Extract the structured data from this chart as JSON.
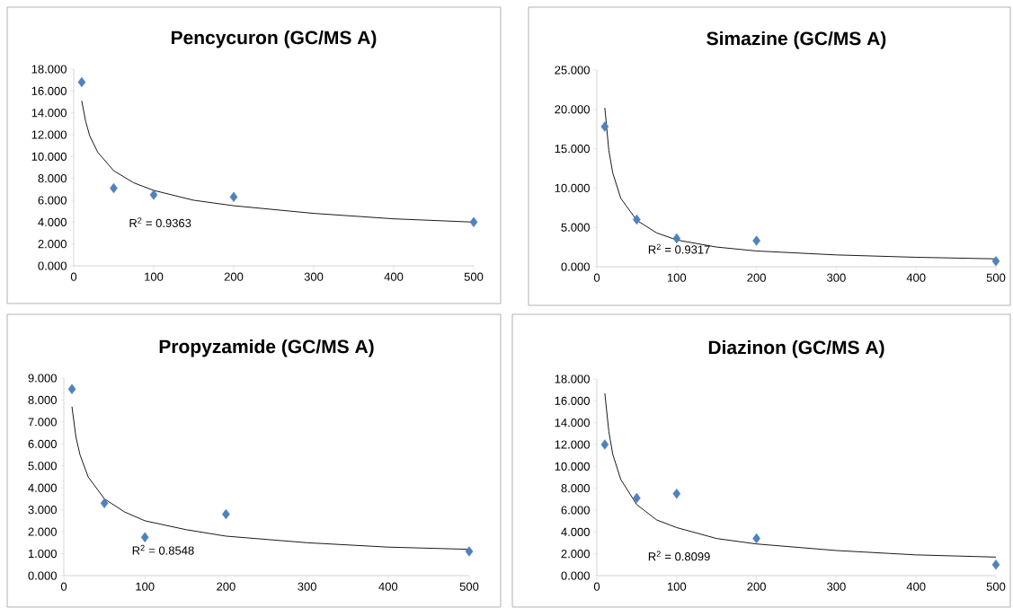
{
  "chart_data": [
    {
      "type": "scatter",
      "title": "Pencycuron (GC/MS A)",
      "xlim": [
        0,
        500
      ],
      "xticks": [
        0,
        100,
        200,
        300,
        400,
        500
      ],
      "ylim": [
        0,
        18
      ],
      "yticks": [
        {
          "value": 0,
          "label": "0.000"
        },
        {
          "value": 2,
          "label": "2.000"
        },
        {
          "value": 4,
          "label": "4.000"
        },
        {
          "value": 6,
          "label": "6.000"
        },
        {
          "value": 8,
          "label": "8.000"
        },
        {
          "value": 10,
          "label": "10.000"
        },
        {
          "value": 12,
          "label": "12.000"
        },
        {
          "value": 14,
          "label": "14.000"
        },
        {
          "value": 16,
          "label": "16.000"
        },
        {
          "value": 18,
          "label": "18.000"
        }
      ],
      "series": [
        {
          "color": "#4f81bd",
          "marker": "diamond",
          "x": [
            10,
            50,
            100,
            200,
            500
          ],
          "values": [
            16.8,
            7.1,
            6.5,
            6.3,
            4.0
          ]
        },
        {
          "type": "line",
          "color": "#000000",
          "marker": "none",
          "x": [
            10,
            15,
            20,
            30,
            50,
            75,
            100,
            150,
            200,
            300,
            400,
            500
          ],
          "values": [
            15.1,
            13.2,
            11.9,
            10.4,
            8.7,
            7.6,
            6.9,
            6.0,
            5.5,
            4.8,
            4.3,
            4.0
          ]
        }
      ],
      "annotations": [
        "R$^{2}$ = 0.9363"
      ]
    },
    {
      "type": "scatter",
      "title": "Simazine (GC/MS A)",
      "xlim": [
        0,
        500
      ],
      "xticks": [
        0,
        100,
        200,
        300,
        400,
        500
      ],
      "ylim": [
        0,
        25
      ],
      "yticks": [
        {
          "value": 0,
          "label": "0.000"
        },
        {
          "value": 5,
          "label": "5.000"
        },
        {
          "value": 10,
          "label": "10.000"
        },
        {
          "value": 15,
          "label": "15.000"
        },
        {
          "value": 20,
          "label": "20.000"
        },
        {
          "value": 25,
          "label": "25.000"
        }
      ],
      "series": [
        {
          "color": "#4f81bd",
          "marker": "diamond",
          "x": [
            10,
            50,
            100,
            200,
            500
          ],
          "values": [
            17.8,
            6.0,
            3.6,
            3.3,
            0.7
          ]
        },
        {
          "type": "line",
          "color": "#000000",
          "marker": "none",
          "x": [
            10,
            15,
            20,
            30,
            50,
            75,
            100,
            150,
            200,
            300,
            400,
            500
          ],
          "values": [
            20.2,
            14.8,
            11.9,
            8.7,
            5.9,
            4.3,
            3.4,
            2.5,
            2.0,
            1.5,
            1.2,
            1.0
          ]
        }
      ],
      "annotations": [
        "R$^{2}$ = 0.9317"
      ]
    },
    {
      "type": "scatter",
      "title": "Propyzamide (GC/MS A)",
      "xlim": [
        0,
        500
      ],
      "xticks": [
        0,
        100,
        200,
        300,
        400,
        500
      ],
      "ylim": [
        0,
        9
      ],
      "yticks": [
        {
          "value": 0,
          "label": "0.000"
        },
        {
          "value": 1,
          "label": "1.000"
        },
        {
          "value": 2,
          "label": "2.000"
        },
        {
          "value": 3,
          "label": "3.000"
        },
        {
          "value": 4,
          "label": "4.000"
        },
        {
          "value": 5,
          "label": "5.000"
        },
        {
          "value": 6,
          "label": "6.000"
        },
        {
          "value": 7,
          "label": "7.000"
        },
        {
          "value": 8,
          "label": "8.000"
        },
        {
          "value": 9,
          "label": "9.000"
        }
      ],
      "series": [
        {
          "color": "#4f81bd",
          "marker": "diamond",
          "x": [
            10,
            50,
            100,
            200,
            500
          ],
          "values": [
            8.5,
            3.3,
            1.75,
            2.8,
            1.1
          ]
        },
        {
          "type": "line",
          "color": "#000000",
          "marker": "none",
          "x": [
            10,
            15,
            20,
            30,
            50,
            75,
            100,
            150,
            200,
            300,
            400,
            500
          ],
          "values": [
            7.7,
            6.3,
            5.5,
            4.5,
            3.5,
            2.9,
            2.5,
            2.1,
            1.8,
            1.5,
            1.3,
            1.2
          ]
        }
      ],
      "annotations": [
        "R$^{2}$ = 0.8548"
      ]
    },
    {
      "type": "scatter",
      "title": "Diazinon (GC/MS A)",
      "xlim": [
        0,
        500
      ],
      "xticks": [
        0,
        100,
        200,
        300,
        400,
        500
      ],
      "ylim": [
        0,
        18
      ],
      "yticks": [
        {
          "value": 0,
          "label": "0.000"
        },
        {
          "value": 2,
          "label": "2.000"
        },
        {
          "value": 4,
          "label": "4.000"
        },
        {
          "value": 6,
          "label": "6.000"
        },
        {
          "value": 8,
          "label": "8.000"
        },
        {
          "value": 10,
          "label": "10.000"
        },
        {
          "value": 12,
          "label": "12.000"
        },
        {
          "value": 14,
          "label": "14.000"
        },
        {
          "value": 16,
          "label": "16.000"
        },
        {
          "value": 18,
          "label": "18.000"
        }
      ],
      "series": [
        {
          "color": "#4f81bd",
          "marker": "diamond",
          "x": [
            10,
            50,
            100,
            200,
            500
          ],
          "values": [
            12.0,
            7.1,
            7.5,
            3.4,
            1.0
          ]
        },
        {
          "type": "line",
          "color": "#000000",
          "marker": "none",
          "x": [
            10,
            15,
            20,
            30,
            50,
            75,
            100,
            150,
            200,
            300,
            400,
            500
          ],
          "values": [
            16.7,
            13.2,
            11.1,
            8.8,
            6.5,
            5.1,
            4.4,
            3.4,
            2.9,
            2.3,
            1.9,
            1.7
          ]
        }
      ],
      "annotations": [
        "R$^{2}$ = 0.8099"
      ]
    }
  ]
}
